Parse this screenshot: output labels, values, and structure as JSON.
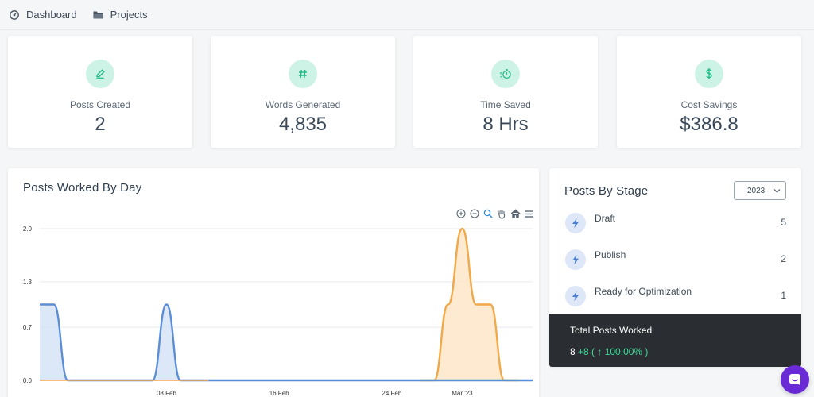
{
  "nav": {
    "items": [
      {
        "label": "Dashboard",
        "icon": "dashboard-icon"
      },
      {
        "label": "Projects",
        "icon": "folder-icon"
      }
    ]
  },
  "stats": [
    {
      "label": "Posts Created",
      "value": "2",
      "icon": "pencil-icon"
    },
    {
      "label": "Words Generated",
      "value": "4,835",
      "icon": "hash-icon"
    },
    {
      "label": "Time Saved",
      "value": "8 Hrs",
      "icon": "stopwatch-icon"
    },
    {
      "label": "Cost Savings",
      "value": "$386.8",
      "icon": "dollar-icon"
    }
  ],
  "chart": {
    "title": "Posts Worked By Day",
    "toolbar": [
      "zoom-in-icon",
      "zoom-out-icon",
      "zoom-select-icon",
      "pan-icon",
      "home-icon",
      "menu-icon"
    ]
  },
  "chart_data": {
    "type": "area",
    "title": "Posts Worked By Day",
    "xlabel": "",
    "ylabel": "",
    "ylim": [
      0,
      2.0
    ],
    "y_ticks": [
      "0.0",
      "0.7",
      "1.3",
      "2.0"
    ],
    "x_ticks": [
      "08 Feb",
      "16 Feb",
      "24 Feb",
      "Mar '23"
    ],
    "grid": true,
    "series": [
      {
        "color": "#5b8ed6",
        "fill": "#d6e3f6",
        "x": [
          "2023-01-30",
          "2023-01-31",
          "2023-02-01",
          "2023-02-02",
          "2023-02-03",
          "2023-02-04",
          "2023-02-05",
          "2023-02-06",
          "2023-02-07",
          "2023-02-08",
          "2023-02-09",
          "2023-02-10",
          "2023-02-11"
        ],
        "values": [
          1,
          1,
          0,
          0,
          0,
          0,
          0,
          0,
          0,
          1,
          0,
          0,
          0
        ]
      },
      {
        "color": "#f0a848",
        "fill": "#fde6c8",
        "x": [
          "2023-02-26",
          "2023-02-27",
          "2023-02-28",
          "2023-03-01",
          "2023-03-02",
          "2023-03-03",
          "2023-03-04",
          "2023-03-05"
        ],
        "values": [
          0,
          0,
          1,
          2,
          1,
          1,
          0,
          0
        ]
      }
    ]
  },
  "stages": {
    "title": "Posts By Stage",
    "year": "2023",
    "items": [
      {
        "name": "Draft",
        "count": "5"
      },
      {
        "name": "Publish",
        "count": "2"
      },
      {
        "name": "Ready for Optimization",
        "count": "1"
      }
    ],
    "total_label": "Total Posts Worked",
    "total_value": "8",
    "total_change": "+8 ( ↑ 100.00% )"
  },
  "colors": {
    "accent_green": "#20b985",
    "stat_icon_bg": "#cdf3e7",
    "blue_series": "#5b8ed6",
    "orange_series": "#f0a848",
    "chat_purple": "#6a2bd6",
    "total_bg": "#2a2d31"
  }
}
